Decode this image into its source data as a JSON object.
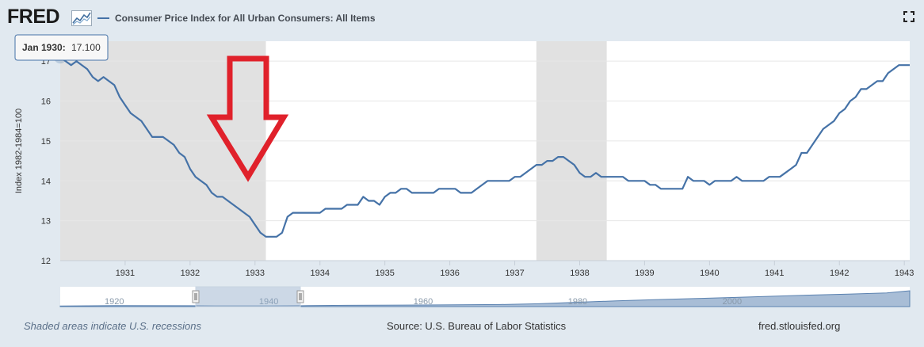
{
  "header": {
    "logo_text": "FRED",
    "logo_icon": "fred-graph-icon",
    "series_title": "Consumer Price Index for All Urban Consumers: All Items",
    "fullscreen_icon": "fullscreen-icon"
  },
  "tooltip": {
    "date_label": "Jan 1930:",
    "value_label": "17.100"
  },
  "annotation": {
    "type": "down-arrow",
    "color": "#e0212b"
  },
  "footer": {
    "recessions_note": "Shaded areas indicate U.S. recessions",
    "source": "Source: U.S. Bureau of Labor Statistics",
    "site": "fred.stlouisfed.org"
  },
  "navigator": {
    "tick_labels": [
      "1920",
      "1940",
      "1960",
      "1980",
      "2000"
    ]
  },
  "chart_data": {
    "type": "line",
    "ylabel": "Index 1982-1984=100",
    "ylim": [
      12,
      17.5
    ],
    "yticks": [
      12,
      13,
      14,
      15,
      16,
      17
    ],
    "xlim": [
      1930.0,
      1943.0833
    ],
    "xtick_labels": [
      "1931",
      "1932",
      "1933",
      "1934",
      "1935",
      "1936",
      "1937",
      "1938",
      "1939",
      "1940",
      "1941",
      "1942",
      "1943"
    ],
    "grid": true,
    "line_color": "#4572a7",
    "recessions": [
      [
        1930.0,
        1933.1667
      ],
      [
        1937.3333,
        1938.4167
      ]
    ],
    "series": [
      {
        "x": [
          1930.0,
          1930.0833,
          1930.1667,
          1930.25,
          1930.3333,
          1930.4167,
          1930.5,
          1930.5833,
          1930.6667,
          1930.75,
          1930.8333,
          1930.9167,
          1931.0,
          1931.0833,
          1931.1667,
          1931.25,
          1931.3333,
          1931.4167,
          1931.5,
          1931.5833,
          1931.6667,
          1931.75,
          1931.8333,
          1931.9167,
          1932.0,
          1932.0833,
          1932.1667,
          1932.25,
          1932.3333,
          1932.4167,
          1932.5,
          1932.5833,
          1932.6667,
          1932.75,
          1932.8333,
          1932.9167,
          1933.0,
          1933.0833,
          1933.1667,
          1933.25,
          1933.3333,
          1933.4167,
          1933.5,
          1933.5833,
          1933.6667,
          1933.75,
          1933.8333,
          1933.9167,
          1934.0,
          1934.0833,
          1934.1667,
          1934.25,
          1934.3333,
          1934.4167,
          1934.5,
          1934.5833,
          1934.6667,
          1934.75,
          1934.8333,
          1934.9167,
          1935.0,
          1935.0833,
          1935.1667,
          1935.25,
          1935.3333,
          1935.4167,
          1935.5,
          1935.5833,
          1935.6667,
          1935.75,
          1935.8333,
          1935.9167,
          1936.0,
          1936.0833,
          1936.1667,
          1936.25,
          1936.3333,
          1936.4167,
          1936.5,
          1936.5833,
          1936.6667,
          1936.75,
          1936.8333,
          1936.9167,
          1937.0,
          1937.0833,
          1937.1667,
          1937.25,
          1937.3333,
          1937.4167,
          1937.5,
          1937.5833,
          1937.6667,
          1937.75,
          1937.8333,
          1937.9167,
          1938.0,
          1938.0833,
          1938.1667,
          1938.25,
          1938.3333,
          1938.4167,
          1938.5,
          1938.5833,
          1938.6667,
          1938.75,
          1938.8333,
          1938.9167,
          1939.0,
          1939.0833,
          1939.1667,
          1939.25,
          1939.3333,
          1939.4167,
          1939.5,
          1939.5833,
          1939.6667,
          1939.75,
          1939.8333,
          1939.9167,
          1940.0,
          1940.0833,
          1940.1667,
          1940.25,
          1940.3333,
          1940.4167,
          1940.5,
          1940.5833,
          1940.6667,
          1940.75,
          1940.8333,
          1940.9167,
          1941.0,
          1941.0833,
          1941.1667,
          1941.25,
          1941.3333,
          1941.4167,
          1941.5,
          1941.5833,
          1941.6667,
          1941.75,
          1941.8333,
          1941.9167,
          1942.0,
          1942.0833,
          1942.1667,
          1942.25,
          1942.3333,
          1942.4167,
          1942.5,
          1942.5833,
          1942.6667,
          1942.75,
          1942.8333,
          1942.9167,
          1943.0,
          1943.0833
        ],
        "values": [
          17.1,
          17.0,
          16.9,
          17.0,
          16.9,
          16.8,
          16.6,
          16.5,
          16.6,
          16.5,
          16.4,
          16.1,
          15.9,
          15.7,
          15.6,
          15.5,
          15.3,
          15.1,
          15.1,
          15.1,
          15.0,
          14.9,
          14.7,
          14.6,
          14.3,
          14.1,
          14.0,
          13.9,
          13.7,
          13.6,
          13.6,
          13.5,
          13.4,
          13.3,
          13.2,
          13.1,
          12.9,
          12.7,
          12.6,
          12.6,
          12.6,
          12.7,
          13.1,
          13.2,
          13.2,
          13.2,
          13.2,
          13.2,
          13.2,
          13.3,
          13.3,
          13.3,
          13.3,
          13.4,
          13.4,
          13.4,
          13.6,
          13.5,
          13.5,
          13.4,
          13.6,
          13.7,
          13.7,
          13.8,
          13.8,
          13.7,
          13.7,
          13.7,
          13.7,
          13.7,
          13.8,
          13.8,
          13.8,
          13.8,
          13.7,
          13.7,
          13.7,
          13.8,
          13.9,
          14.0,
          14.0,
          14.0,
          14.0,
          14.0,
          14.1,
          14.1,
          14.2,
          14.3,
          14.4,
          14.4,
          14.5,
          14.5,
          14.6,
          14.6,
          14.5,
          14.4,
          14.2,
          14.1,
          14.1,
          14.2,
          14.1,
          14.1,
          14.1,
          14.1,
          14.1,
          14.0,
          14.0,
          14.0,
          14.0,
          13.9,
          13.9,
          13.8,
          13.8,
          13.8,
          13.8,
          13.8,
          14.1,
          14.0,
          14.0,
          14.0,
          13.9,
          14.0,
          14.0,
          14.0,
          14.0,
          14.1,
          14.0,
          14.0,
          14.0,
          14.0,
          14.0,
          14.1,
          14.1,
          14.1,
          14.2,
          14.3,
          14.4,
          14.7,
          14.7,
          14.9,
          15.1,
          15.3,
          15.4,
          15.5,
          15.7,
          15.8,
          16.0,
          16.1,
          16.3,
          16.3,
          16.4,
          16.5,
          16.5,
          16.7,
          16.8,
          16.9,
          16.9,
          16.9
        ]
      }
    ]
  }
}
